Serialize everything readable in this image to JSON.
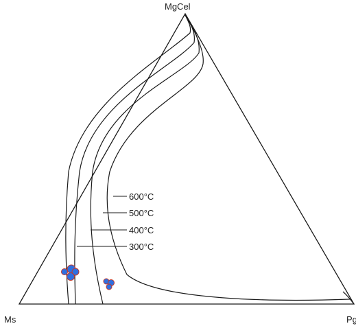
{
  "diagram": {
    "vertices": {
      "top": "MgCel",
      "left": "Ms",
      "right": "Pg"
    },
    "isotherms": [
      "600°C",
      "500°C",
      "400°C",
      "300°C"
    ],
    "colors": {
      "lines": "#1a1a1a",
      "sample_fill": "#2f6fe0",
      "sample_outline": "#c0392b"
    }
  }
}
